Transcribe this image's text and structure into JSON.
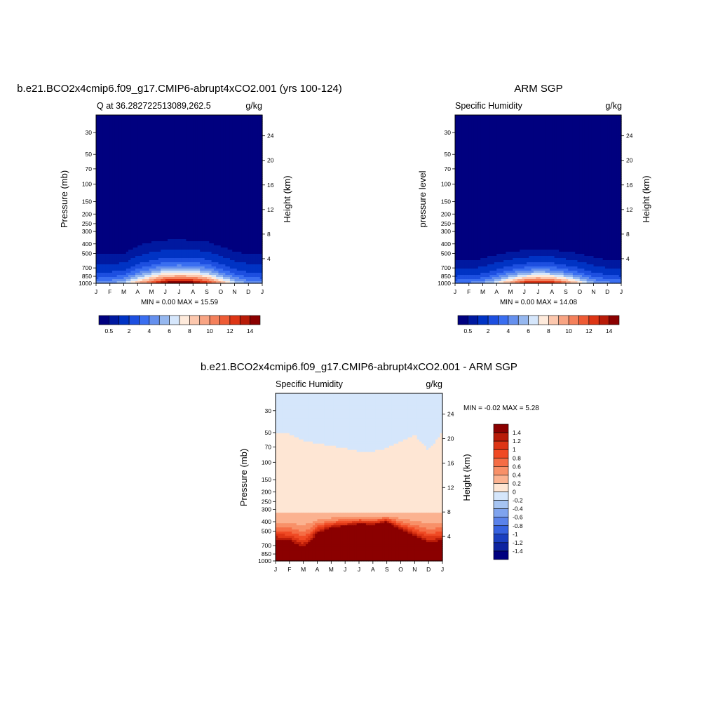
{
  "panels": [
    {
      "id": "model",
      "title": "b.e21.BCO2x4cmip6.f09_g17.CMIP6-abrupt4xCO2.001 (yrs 100-124)",
      "left_label": "Q at 36.282722513089,262.5",
      "right_label": "g/kg",
      "ylabel": "Pressure (mb)",
      "y2label": "Height (km)",
      "minmax": "MIN =   0.00 MAX =  15.59"
    },
    {
      "id": "obs",
      "title": "ARM SGP",
      "left_label": "Specific Humidity",
      "right_label": "g/kg",
      "ylabel": "pressure level",
      "y2label": "Height (km)",
      "minmax": "MIN =   0.00 MAX =  14.08"
    },
    {
      "id": "diff",
      "title": "b.e21.BCO2x4cmip6.f09_g17.CMIP6-abrupt4xCO2.001 - ARM SGP",
      "left_label": "Specific Humidity",
      "right_label": "g/kg",
      "ylabel": "Pressure (mb)",
      "y2label": "Height (km)",
      "minmax": "MIN =  -0.02 MAX =   5.28"
    }
  ],
  "axes": {
    "month_labels": [
      "J",
      "F",
      "M",
      "A",
      "M",
      "J",
      "J",
      "A",
      "S",
      "O",
      "N",
      "D",
      "J"
    ],
    "pressure_ticks": [
      30,
      50,
      70,
      100,
      150,
      200,
      250,
      300,
      400,
      500,
      700,
      850,
      1000
    ],
    "pressure_range": [
      20,
      1000
    ],
    "height_ticks_km": [
      4,
      8,
      12,
      16,
      20,
      24
    ]
  },
  "colorbar_abs": {
    "labels": [
      "0.5",
      "2",
      "4",
      "6",
      "8",
      "10",
      "12",
      "14"
    ],
    "colors": [
      "#00007f",
      "#0019a0",
      "#0033c4",
      "#1d4fe0",
      "#3a6ef0",
      "#6590ee",
      "#95b7ef",
      "#d5e6fb",
      "#feeadb",
      "#fcc7ad",
      "#f8a483",
      "#f4805b",
      "#ee5b35",
      "#dd3515",
      "#b81b08",
      "#8b0000"
    ]
  },
  "colorbar_diff": {
    "labels": [
      "1.4",
      "1.2",
      "1",
      "0.8",
      "0.6",
      "0.4",
      "0.2",
      "0",
      "-0.2",
      "-0.4",
      "-0.6",
      "-0.8",
      "-1",
      "-1.2",
      "-1.4"
    ],
    "colors": [
      "#8b0000",
      "#b81b08",
      "#dd3515",
      "#f04a24",
      "#f56d45",
      "#f89068",
      "#fbb290",
      "#fee6d4",
      "#d5e6fb",
      "#a6c4f2",
      "#7fa3ee",
      "#5a82ea",
      "#3662e0",
      "#1a3fc0",
      "#0d24a0",
      "#00007f"
    ]
  },
  "chart_data": [
    {
      "type": "heatmap",
      "title": "b.e21.BCO2x4cmip6.f09_g17.CMIP6-abrupt4xCO2.001 (yrs 100-124)",
      "variable": "Q at 36.282722513089,262.5",
      "units": "g/kg",
      "ylabel": "Pressure (mb)",
      "y2label": "Height (km)",
      "y_scale": "log",
      "levels": [
        0.5,
        1,
        2,
        3,
        4,
        5,
        6,
        7,
        8,
        9,
        10,
        11,
        12,
        13,
        14
      ],
      "x": [
        "J",
        "F",
        "M",
        "A",
        "M",
        "J",
        "J",
        "A",
        "S",
        "O",
        "N",
        "D",
        "J"
      ],
      "surface_peak_gkg": [
        4.5,
        5,
        6,
        9,
        12,
        15,
        15.59,
        15.2,
        13,
        9.5,
        6.5,
        5,
        4.5
      ],
      "moisture_top_mb": [
        400,
        400,
        410,
        330,
        305,
        295,
        290,
        298,
        300,
        340,
        380,
        400,
        400
      ],
      "min": 0.0,
      "max": 15.59
    },
    {
      "type": "heatmap",
      "title": "ARM SGP",
      "variable": "Specific Humidity",
      "units": "g/kg",
      "ylabel": "pressure level",
      "y2label": "Height (km)",
      "y_scale": "log",
      "levels": [
        0.5,
        1,
        2,
        3,
        4,
        5,
        6,
        7,
        8,
        9,
        10,
        11,
        12,
        13,
        14
      ],
      "x": [
        "J",
        "F",
        "M",
        "A",
        "M",
        "J",
        "J",
        "A",
        "S",
        "O",
        "N",
        "D",
        "J"
      ],
      "surface_peak_gkg": [
        4,
        4.3,
        5,
        7,
        10,
        13,
        14.08,
        13.5,
        11,
        8,
        5.5,
        4.5,
        4
      ],
      "moisture_top_mb": [
        500,
        500,
        470,
        430,
        405,
        395,
        385,
        390,
        410,
        420,
        450,
        490,
        500
      ],
      "min": 0.0,
      "max": 14.08
    },
    {
      "type": "heatmap",
      "title": "b.e21.BCO2x4cmip6.f09_g17.CMIP6-abrupt4xCO2.001 - ARM SGP",
      "variable": "Specific Humidity",
      "units": "g/kg",
      "ylabel": "Pressure (mb)",
      "y2label": "Height (km)",
      "y_scale": "log",
      "levels": [
        -1.4,
        -1.2,
        -1,
        -0.8,
        -0.6,
        -0.4,
        -0.2,
        0,
        0.2,
        0.4,
        0.6,
        0.8,
        1,
        1.2,
        1.4
      ],
      "x": [
        "J",
        "F",
        "M",
        "A",
        "M",
        "J",
        "J",
        "A",
        "S",
        "O",
        "N",
        "D",
        "J"
      ],
      "zero_line_mb": [
        50,
        52,
        60,
        65,
        68,
        72,
        78,
        78,
        72,
        62,
        52,
        75,
        48
      ],
      "positive_core_top_mb": [
        600,
        620,
        720,
        520,
        460,
        440,
        420,
        430,
        400,
        480,
        560,
        650,
        620
      ],
      "min": -0.02,
      "max": 5.28
    }
  ]
}
